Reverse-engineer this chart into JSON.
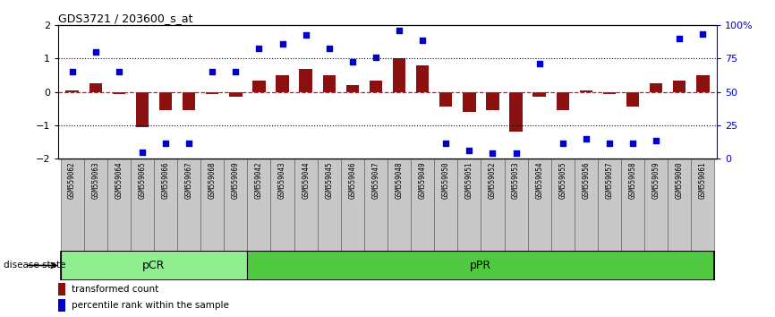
{
  "title": "GDS3721 / 203600_s_at",
  "samples": [
    "GSM559062",
    "GSM559063",
    "GSM559064",
    "GSM559065",
    "GSM559066",
    "GSM559067",
    "GSM559068",
    "GSM559069",
    "GSM559042",
    "GSM559043",
    "GSM559044",
    "GSM559045",
    "GSM559046",
    "GSM559047",
    "GSM559048",
    "GSM559049",
    "GSM559050",
    "GSM559051",
    "GSM559052",
    "GSM559053",
    "GSM559054",
    "GSM559055",
    "GSM559056",
    "GSM559057",
    "GSM559058",
    "GSM559059",
    "GSM559060",
    "GSM559061"
  ],
  "bar_values": [
    0.05,
    0.25,
    -0.05,
    -1.05,
    -0.55,
    -0.55,
    -0.05,
    -0.15,
    0.35,
    0.5,
    0.7,
    0.5,
    0.2,
    0.35,
    1.0,
    0.8,
    -0.45,
    -0.6,
    -0.55,
    -1.2,
    -0.15,
    -0.55,
    0.05,
    -0.05,
    -0.45,
    0.25,
    0.35,
    0.5
  ],
  "scatter_values": [
    0.6,
    1.2,
    0.6,
    -1.8,
    -1.55,
    -1.55,
    0.6,
    0.6,
    1.3,
    1.45,
    1.7,
    1.3,
    0.9,
    1.05,
    1.85,
    1.55,
    -1.55,
    -1.75,
    -1.85,
    -1.85,
    0.85,
    -1.55,
    -1.4,
    -1.55,
    -1.55,
    -1.45,
    1.6,
    1.75
  ],
  "pCR_count": 8,
  "bar_color": "#8B1010",
  "scatter_color": "#0000CC",
  "pCR_color": "#90EE90",
  "pPR_color": "#50C840",
  "ylim": [
    -2,
    2
  ],
  "right_ylim": [
    0,
    100
  ],
  "dotted_lines": [
    1.0,
    -1.0
  ],
  "legend_bar": "transformed count",
  "legend_scatter": "percentile rank within the sample",
  "disease_state_label": "disease state",
  "pCR_label": "pCR",
  "pPR_label": "pPR",
  "gray_box_color": "#C8C8C8",
  "gray_box_edge": "#666666"
}
